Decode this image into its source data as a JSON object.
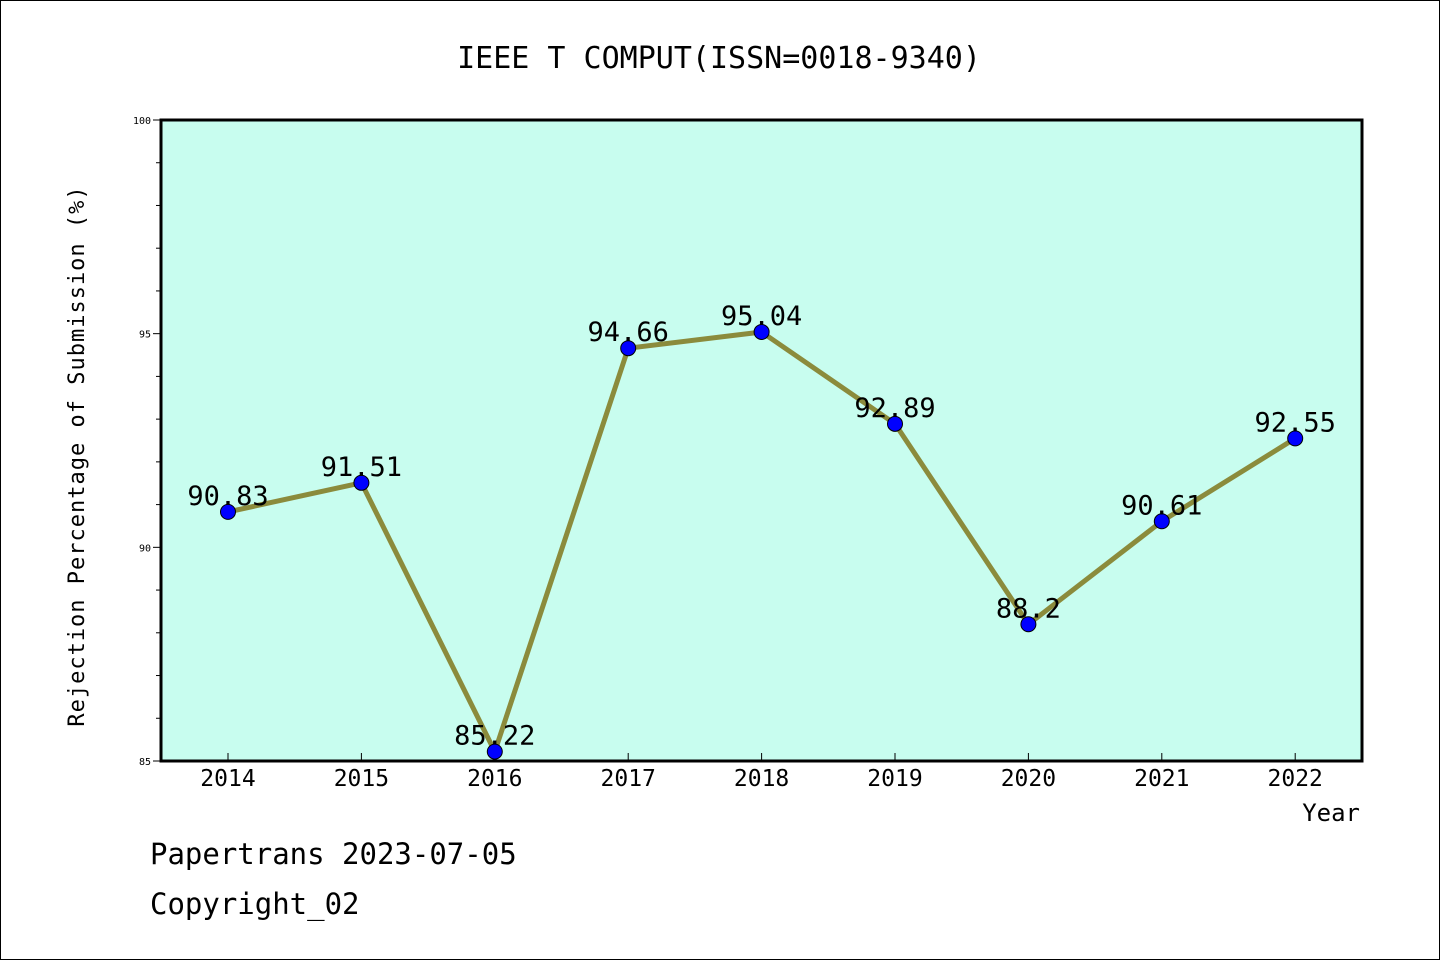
{
  "chart_data": {
    "type": "line",
    "title": "IEEE T COMPUT(ISSN=0018-9340)",
    "xlabel": "Year",
    "ylabel": "Rejection Percentage of Submission (%)",
    "categories": [
      "2014",
      "2015",
      "2016",
      "2017",
      "2018",
      "2019",
      "2020",
      "2021",
      "2022"
    ],
    "values": [
      90.83,
      91.51,
      85.22,
      94.66,
      95.04,
      92.89,
      88.2,
      90.61,
      92.55
    ],
    "data_labels": [
      "90.83",
      "91.51",
      "85.22",
      "94.66",
      "95.04",
      "92.89",
      "88.2",
      "90.61",
      "92.55"
    ],
    "ylim": [
      85,
      100
    ],
    "yticks": [
      "85",
      "90",
      "95",
      "100"
    ],
    "grid": false,
    "legend": "none",
    "colors": {
      "plot_background": "#c8fdef",
      "line": "#8b8b3c",
      "marker": "#0000ff"
    }
  },
  "footer": {
    "line1": "Papertrans 2023-07-05",
    "line2": "Copyright_02"
  }
}
